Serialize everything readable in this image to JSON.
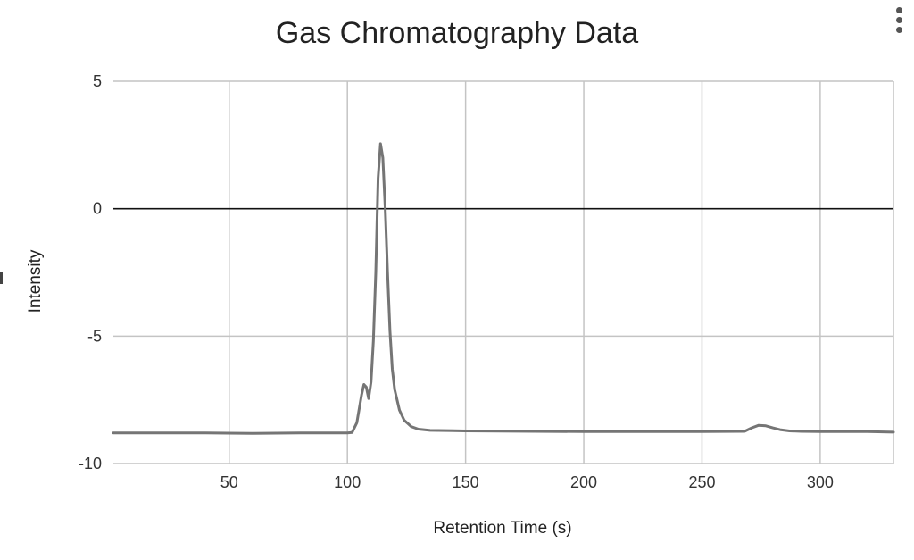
{
  "chart_data": {
    "type": "line",
    "title": "Gas Chromatography Data",
    "xlabel": "Retention Time (s)",
    "ylabel": "Intensity",
    "xlim": [
      1,
      331
    ],
    "ylim": [
      -10,
      5
    ],
    "x_ticks": [
      50,
      100,
      150,
      200,
      250,
      300
    ],
    "y_ticks": [
      5,
      0,
      -5,
      -10
    ],
    "grid": true,
    "legend": "none",
    "zero_line": true,
    "line_color": "#757575",
    "grid_color": "#c4c4c4",
    "series": [
      {
        "x": [
          1,
          20,
          40,
          60,
          80,
          95,
          100,
          102,
          104,
          106,
          107,
          108,
          109,
          110,
          111,
          112,
          113,
          114,
          115,
          116,
          117,
          118,
          119,
          120,
          122,
          124,
          127,
          130,
          135,
          150,
          200,
          250,
          268,
          271,
          274,
          277,
          280,
          283,
          287,
          292,
          300,
          320,
          331
        ],
        "y": [
          -8.8,
          -8.8,
          -8.8,
          -8.82,
          -8.8,
          -8.8,
          -8.8,
          -8.78,
          -8.4,
          -7.3,
          -6.9,
          -7.0,
          -7.45,
          -6.8,
          -5.2,
          -2.5,
          1.2,
          2.55,
          2.0,
          0.0,
          -2.5,
          -4.8,
          -6.3,
          -7.1,
          -7.9,
          -8.3,
          -8.55,
          -8.65,
          -8.7,
          -8.72,
          -8.75,
          -8.75,
          -8.74,
          -8.6,
          -8.5,
          -8.52,
          -8.6,
          -8.67,
          -8.72,
          -8.74,
          -8.75,
          -8.75,
          -8.77
        ]
      }
    ]
  }
}
